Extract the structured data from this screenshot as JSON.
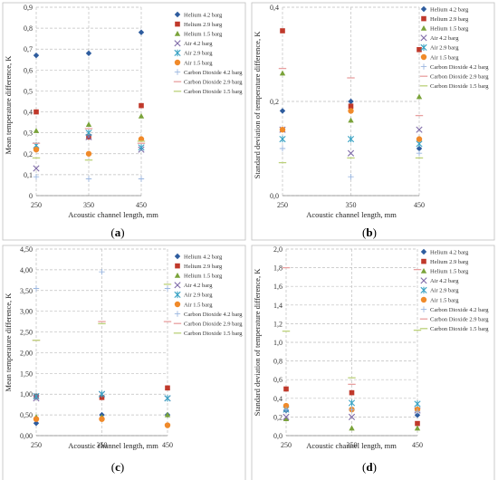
{
  "series_styles": [
    {
      "name": "Helium 4.2 barg",
      "color": "#2e5c9e",
      "marker": "diamond"
    },
    {
      "name": "Helium 2.9 barg",
      "color": "#c0392b",
      "marker": "square"
    },
    {
      "name": "Helium 1.5 barg",
      "color": "#7aa33a",
      "marker": "triangle"
    },
    {
      "name": "Air 4.2 barg",
      "color": "#7f6ba8",
      "marker": "x"
    },
    {
      "name": "Air 2.9 barg",
      "color": "#3ba3c4",
      "marker": "star"
    },
    {
      "name": "Air 1.5 barg",
      "color": "#f08a2a",
      "marker": "circle"
    },
    {
      "name": "Carbon Dioxide 4.2 barg",
      "color": "#9bb7e0",
      "marker": "plus"
    },
    {
      "name": "Carbon Dioxide 2.9 barg",
      "color": "#e8a0a0",
      "marker": "dash"
    },
    {
      "name": "Carbon Dioxide 1.5 barg",
      "color": "#bcd17a",
      "marker": "dash"
    }
  ],
  "chart_data": [
    {
      "type": "scatter",
      "caption": "(a)",
      "xlabel": "Acoustic channel length, mm",
      "ylabel": "Mean temperature difference, K",
      "x": [
        250,
        350,
        450
      ],
      "x_ticks": [
        "250",
        "350",
        "450"
      ],
      "ylim": [
        0,
        0.9
      ],
      "y_ticks": [
        "0",
        "0,1",
        "0,2",
        "0,3",
        "0,4",
        "0,5",
        "0,6",
        "0,7",
        "0,8",
        "0,9"
      ],
      "y_tick_values": [
        0,
        0.1,
        0.2,
        0.3,
        0.4,
        0.5,
        0.6,
        0.7,
        0.8,
        0.9
      ],
      "legend": "right",
      "series": [
        {
          "name": "Helium 4.2 barg",
          "values": [
            0.67,
            0.68,
            0.78
          ]
        },
        {
          "name": "Helium 2.9 barg",
          "values": [
            0.4,
            0.28,
            0.43
          ]
        },
        {
          "name": "Helium 1.5 barg",
          "values": [
            0.31,
            0.34,
            0.38
          ]
        },
        {
          "name": "Air 4.2 barg",
          "values": [
            0.13,
            0.28,
            0.22
          ]
        },
        {
          "name": "Air 2.9 barg",
          "values": [
            0.24,
            0.3,
            0.23
          ]
        },
        {
          "name": "Air 1.5 barg",
          "values": [
            0.22,
            0.2,
            0.27
          ]
        },
        {
          "name": "Carbon Dioxide 4.2 barg",
          "values": [
            0.09,
            0.08,
            0.08
          ]
        },
        {
          "name": "Carbon Dioxide 2.9 barg",
          "values": [
            0.25,
            0.32,
            0.25
          ]
        },
        {
          "name": "Carbon Dioxide 1.5 barg",
          "values": [
            0.18,
            0.17,
            0.26
          ]
        }
      ]
    },
    {
      "type": "scatter",
      "caption": "(b)",
      "xlabel": "Acoustic channel length, mm",
      "ylabel": "Standard deviation of temperature difference, K",
      "x": [
        250,
        350,
        450
      ],
      "x_ticks": [
        "250",
        "350",
        "450"
      ],
      "ylim": [
        0,
        0.4
      ],
      "y_ticks": [
        "0,0",
        "0,2",
        "0,4"
      ],
      "y_tick_values": [
        0,
        0.2,
        0.4
      ],
      "legend": "right",
      "series": [
        {
          "name": "Helium 4.2 barg",
          "values": [
            0.18,
            0.2,
            0.1
          ]
        },
        {
          "name": "Helium 2.9 barg",
          "values": [
            0.35,
            0.19,
            0.31
          ]
        },
        {
          "name": "Helium 1.5 barg",
          "values": [
            0.26,
            0.16,
            0.21
          ]
        },
        {
          "name": "Air 4.2 barg",
          "values": [
            0.14,
            0.09,
            0.14
          ]
        },
        {
          "name": "Air 2.9 barg",
          "values": [
            0.12,
            0.12,
            0.11
          ]
        },
        {
          "name": "Air 1.5 barg",
          "values": [
            0.14,
            0.18,
            0.12
          ]
        },
        {
          "name": "Carbon Dioxide 4.2 barg",
          "values": [
            0.1,
            0.04,
            0.09
          ]
        },
        {
          "name": "Carbon Dioxide 2.9 barg",
          "values": [
            0.27,
            0.25,
            0.17
          ]
        },
        {
          "name": "Carbon Dioxide 1.5 barg",
          "values": [
            0.07,
            0.08,
            0.08
          ]
        }
      ]
    },
    {
      "type": "scatter",
      "caption": "(c)",
      "xlabel": "Acoustic channel length, mm",
      "ylabel": "Mean temperature difference, K",
      "x": [
        250,
        350,
        450
      ],
      "x_ticks": [
        "250",
        "350",
        "450"
      ],
      "ylim": [
        0,
        4.5
      ],
      "y_ticks": [
        "0,00",
        "0,50",
        "1,00",
        "1,50",
        "2,00",
        "2,50",
        "3,00",
        "3,50",
        "4,00",
        "4,50"
      ],
      "y_tick_values": [
        0,
        0.5,
        1,
        1.5,
        2,
        2.5,
        3,
        3.5,
        4,
        4.5
      ],
      "legend": "right",
      "series": [
        {
          "name": "Helium 4.2 barg",
          "values": [
            0.3,
            0.5,
            0.5
          ]
        },
        {
          "name": "Helium 2.9 barg",
          "values": [
            0.95,
            0.92,
            1.15
          ]
        },
        {
          "name": "Helium 1.5 barg",
          "values": [
            0.45,
            0.45,
            0.5
          ]
        },
        {
          "name": "Air 4.2 barg",
          "values": [
            0.9,
            1.0,
            0.9
          ]
        },
        {
          "name": "Air 2.9 barg",
          "values": [
            0.95,
            1.0,
            0.9
          ]
        },
        {
          "name": "Air 1.5 barg",
          "values": [
            0.4,
            0.4,
            0.25
          ]
        },
        {
          "name": "Carbon Dioxide 4.2 barg",
          "values": [
            3.55,
            3.95,
            3.55
          ]
        },
        {
          "name": "Carbon Dioxide 2.9 barg",
          "values": [
            2.3,
            2.75,
            2.75
          ]
        },
        {
          "name": "Carbon Dioxide 1.5 barg",
          "values": [
            2.3,
            2.7,
            3.65
          ]
        }
      ]
    },
    {
      "type": "scatter",
      "caption": "(d)",
      "xlabel": "Acoustic channel length, mm",
      "ylabel": "Standard deviation of temperature difference, K",
      "x": [
        250,
        350,
        450
      ],
      "x_ticks": [
        "250",
        "350",
        "450"
      ],
      "ylim": [
        0,
        2.0
      ],
      "y_ticks": [
        "0,0",
        "0,2",
        "0,4",
        "0,6",
        "0,8",
        "1,0",
        "1,2",
        "1,4",
        "1,6",
        "1,8",
        "2,0"
      ],
      "y_tick_values": [
        0,
        0.2,
        0.4,
        0.6,
        0.8,
        1.0,
        1.2,
        1.4,
        1.6,
        1.8,
        2.0
      ],
      "legend": "right",
      "series": [
        {
          "name": "Helium 4.2 barg",
          "values": [
            0.27,
            0.28,
            0.22
          ]
        },
        {
          "name": "Helium 2.9 barg",
          "values": [
            0.5,
            0.46,
            0.13
          ]
        },
        {
          "name": "Helium 1.5 barg",
          "values": [
            0.18,
            0.08,
            0.08
          ]
        },
        {
          "name": "Air 4.2 barg",
          "values": [
            0.2,
            0.2,
            0.27
          ]
        },
        {
          "name": "Air 2.9 barg",
          "values": [
            0.28,
            0.35,
            0.34
          ]
        },
        {
          "name": "Air 1.5 barg",
          "values": [
            0.32,
            0.28,
            0.28
          ]
        },
        {
          "name": "Carbon Dioxide 4.2 barg",
          "values": [
            0.28,
            0.28,
            0.26
          ]
        },
        {
          "name": "Carbon Dioxide 2.9 barg",
          "values": [
            1.8,
            0.55,
            1.78
          ]
        },
        {
          "name": "Carbon Dioxide 1.5 barg",
          "values": [
            1.12,
            0.62,
            1.13
          ]
        }
      ]
    }
  ]
}
